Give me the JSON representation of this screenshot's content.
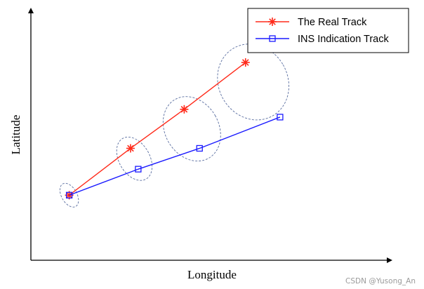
{
  "chart_data": {
    "type": "line",
    "xlabel": "Longitude",
    "ylabel": "Latitude",
    "xlim": [
      0,
      10
    ],
    "ylim": [
      0,
      10
    ],
    "legend_position": "top-right",
    "grid": false,
    "series": [
      {
        "name": "The Real Track",
        "color": "#ff2a1a",
        "marker": "asterisk-icon",
        "x": [
          1.0,
          2.6,
          4.0,
          5.6
        ],
        "y": [
          2.5,
          4.3,
          5.8,
          7.6
        ]
      },
      {
        "name": "INS Indication Track",
        "color": "#1a1aff",
        "marker": "square-icon",
        "x": [
          1.0,
          2.8,
          4.4,
          6.5
        ],
        "y": [
          2.5,
          3.5,
          4.3,
          5.5
        ]
      }
    ],
    "error_ellipses": [
      {
        "cx": 1.0,
        "cy": 2.5,
        "rx": 0.2,
        "ry": 0.5
      },
      {
        "cx": 2.7,
        "cy": 3.9,
        "rx": 0.4,
        "ry": 0.9
      },
      {
        "cx": 4.2,
        "cy": 5.05,
        "rx": 0.7,
        "ry": 1.3
      },
      {
        "cx": 5.8,
        "cy": 6.85,
        "rx": 0.9,
        "ry": 1.5
      }
    ],
    "ellipse_color": "#5a6ea0"
  },
  "watermark": "CSDN @Yusong_An"
}
